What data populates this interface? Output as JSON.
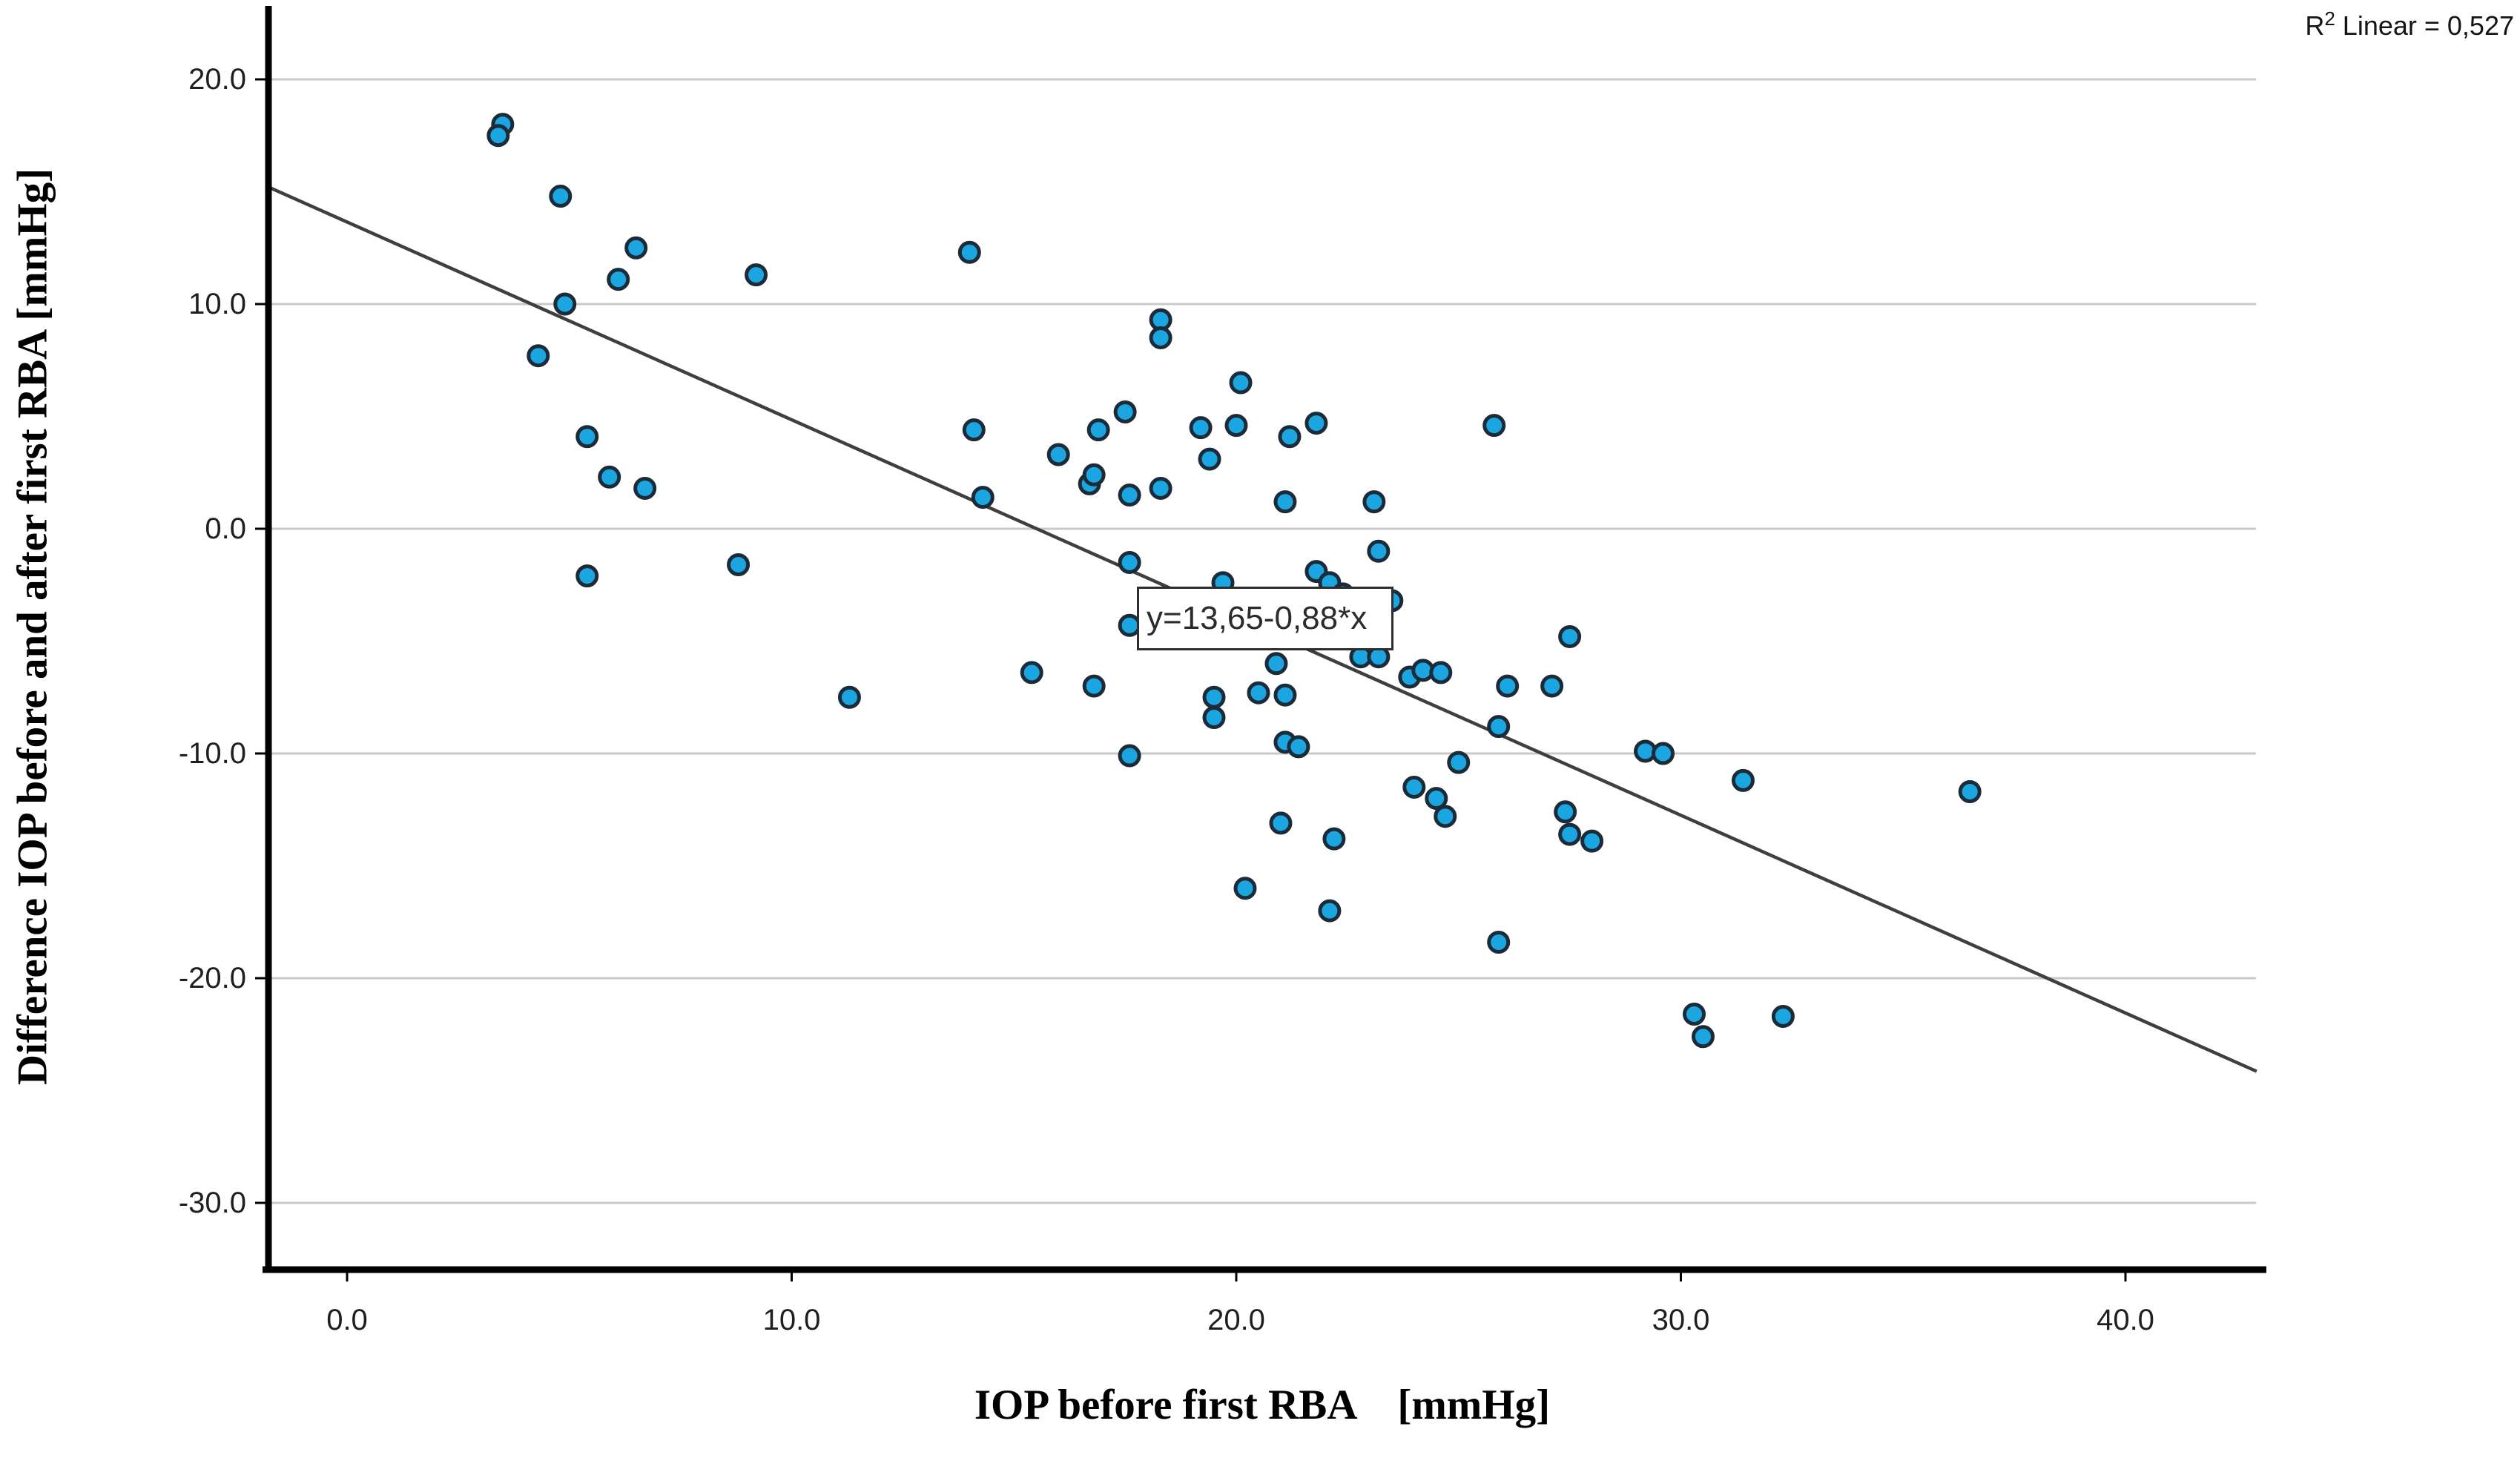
{
  "chart_data": {
    "type": "scatter",
    "title": "",
    "xlabel": "IOP before first RBA    [mmHg]",
    "ylabel": "Difference IOP before and after first RBA [mmHg]",
    "r2": {
      "prefix": "R",
      "sup": "2",
      "rest": " Linear = 0,527"
    },
    "equation_label": "y=13,65-0,88*x",
    "x_ticks": [
      {
        "value": 0,
        "label": "0.0"
      },
      {
        "value": 10,
        "label": "10.0"
      },
      {
        "value": 20,
        "label": "20.0"
      },
      {
        "value": 30,
        "label": "30.0"
      },
      {
        "value": 40,
        "label": "40.0"
      }
    ],
    "y_ticks": [
      {
        "value": 20,
        "label": "20.0"
      },
      {
        "value": 10,
        "label": "10.0"
      },
      {
        "value": 0,
        "label": "0.0"
      },
      {
        "value": -10,
        "label": "-10.0"
      },
      {
        "value": -20,
        "label": "-20.0"
      },
      {
        "value": -30,
        "label": "-30.0"
      }
    ],
    "xlim": [
      -1.75,
      43.0
    ],
    "ylim": [
      -33.0,
      23.2
    ],
    "grid": "horizontal",
    "legend": "none",
    "regression": {
      "intercept": 13.65,
      "slope": -0.88,
      "x_from": -1.75,
      "x_to": 42.95
    },
    "points": [
      [
        3.5,
        18.0
      ],
      [
        3.4,
        17.5
      ],
      [
        4.8,
        14.8
      ],
      [
        6.5,
        12.5
      ],
      [
        6.1,
        11.1
      ],
      [
        9.2,
        11.3
      ],
      [
        4.9,
        10.0
      ],
      [
        4.3,
        7.7
      ],
      [
        5.4,
        4.1
      ],
      [
        5.9,
        2.3
      ],
      [
        6.7,
        1.8
      ],
      [
        8.8,
        -1.6
      ],
      [
        5.4,
        -2.1
      ],
      [
        14.0,
        12.3
      ],
      [
        11.3,
        -7.5
      ],
      [
        14.3,
        1.4
      ],
      [
        14.1,
        4.4
      ],
      [
        16.0,
        3.3
      ],
      [
        16.9,
        4.4
      ],
      [
        17.5,
        5.2
      ],
      [
        15.4,
        -6.4
      ],
      [
        16.8,
        -7.0
      ],
      [
        16.7,
        2.0
      ],
      [
        16.8,
        2.4
      ],
      [
        17.6,
        1.5
      ],
      [
        18.3,
        1.8
      ],
      [
        17.6,
        -1.5
      ],
      [
        17.6,
        -4.3
      ],
      [
        17.6,
        -10.1
      ],
      [
        18.3,
        9.3
      ],
      [
        18.3,
        8.5
      ],
      [
        19.2,
        4.5
      ],
      [
        20.0,
        4.6
      ],
      [
        19.4,
        3.1
      ],
      [
        20.1,
        6.5
      ],
      [
        19.7,
        -2.4
      ],
      [
        19.5,
        -7.5
      ],
      [
        19.5,
        -8.4
      ],
      [
        20.5,
        -7.3
      ],
      [
        20.2,
        -16.0
      ],
      [
        21.2,
        4.1
      ],
      [
        21.8,
        4.7
      ],
      [
        21.1,
        1.2
      ],
      [
        23.1,
        1.2
      ],
      [
        23.2,
        -1.0
      ],
      [
        21.8,
        -1.9
      ],
      [
        22.1,
        -2.4
      ],
      [
        22.4,
        -2.9
      ],
      [
        23.5,
        -3.2
      ],
      [
        22.8,
        -5.7
      ],
      [
        23.2,
        -5.7
      ],
      [
        20.9,
        -6.0
      ],
      [
        21.1,
        -7.4
      ],
      [
        23.9,
        -6.6
      ],
      [
        24.2,
        -6.3
      ],
      [
        24.6,
        -6.4
      ],
      [
        21.1,
        -9.5
      ],
      [
        21.4,
        -9.7
      ],
      [
        25.8,
        4.6
      ],
      [
        25.9,
        -8.8
      ],
      [
        26.1,
        -7.0
      ],
      [
        27.1,
        -7.0
      ],
      [
        27.5,
        -4.8
      ],
      [
        25.0,
        -10.4
      ],
      [
        24.0,
        -11.5
      ],
      [
        24.5,
        -12.0
      ],
      [
        24.7,
        -12.8
      ],
      [
        21.0,
        -13.1
      ],
      [
        22.2,
        -13.8
      ],
      [
        22.1,
        -17.0
      ],
      [
        25.9,
        -18.4
      ],
      [
        27.4,
        -12.6
      ],
      [
        27.5,
        -13.6
      ],
      [
        28.0,
        -13.9
      ],
      [
        29.2,
        -9.9
      ],
      [
        29.6,
        -10.0
      ],
      [
        31.4,
        -11.2
      ],
      [
        30.3,
        -21.6
      ],
      [
        30.5,
        -22.6
      ],
      [
        32.3,
        -21.7
      ],
      [
        36.5,
        -11.7
      ]
    ],
    "colors": {
      "point_fill": "#1BA6E2",
      "point_stroke": "#1B2B38",
      "regression_line": "#3F3F3F",
      "grid_line": "#C9C9C9",
      "axis_line": "#000000",
      "equation_border": "#2E2E2E"
    }
  }
}
